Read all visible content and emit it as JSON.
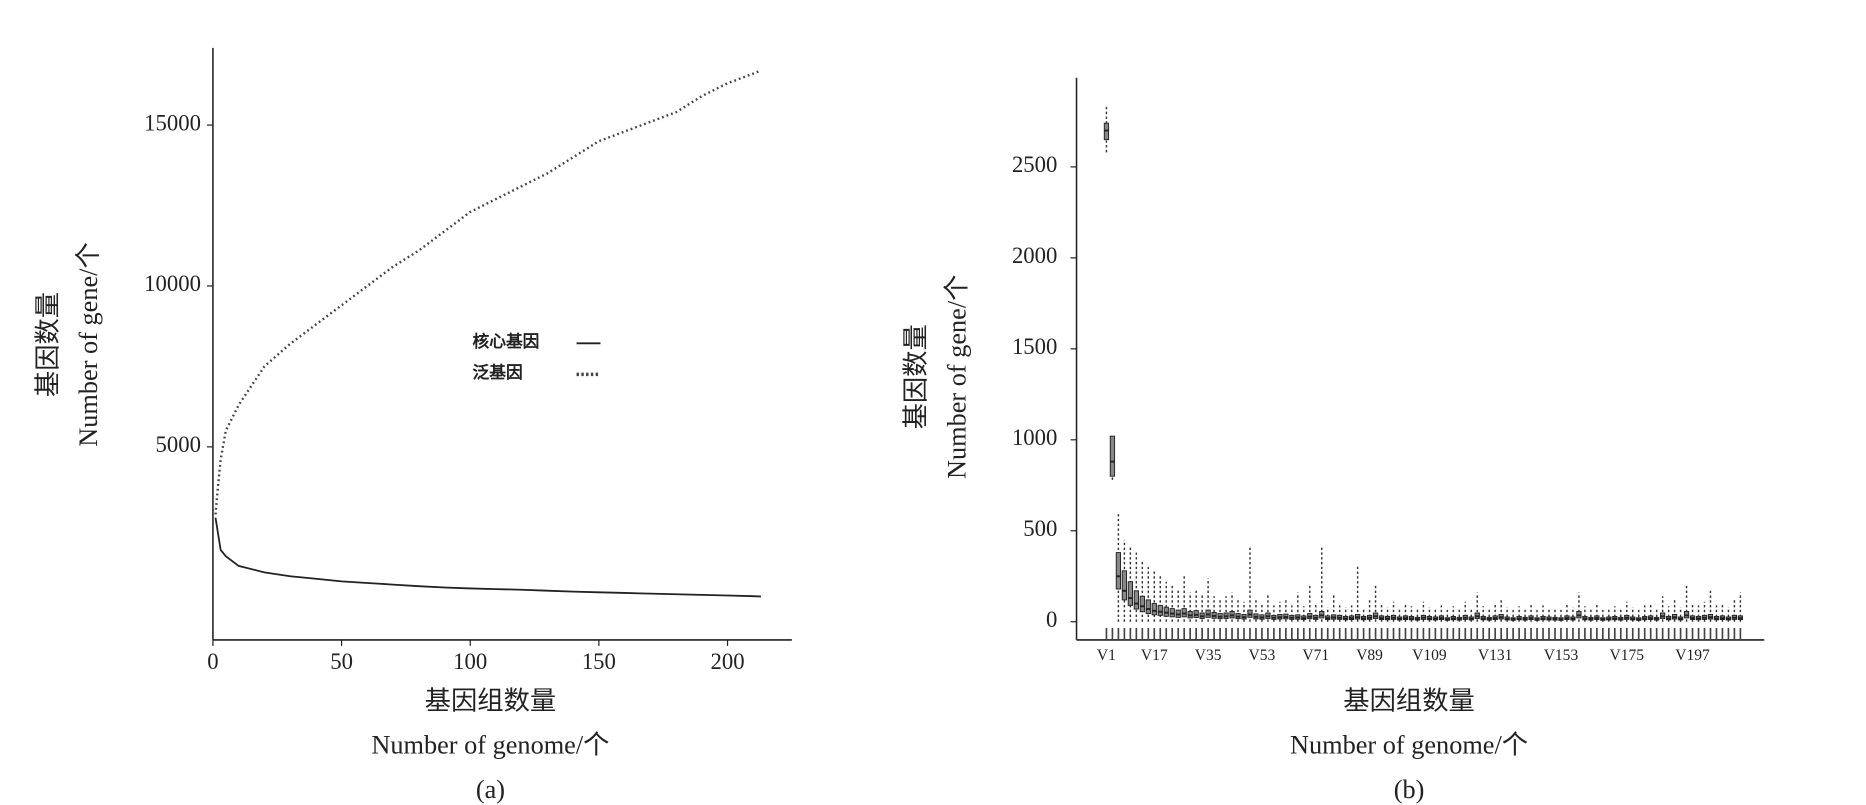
{
  "chart_data": [
    {
      "type": "line",
      "caption": "(a)",
      "xlabel": [
        "基因组数量",
        "Number of genome/个"
      ],
      "ylabel": [
        "基因数量",
        "Number of gene/个"
      ],
      "xlim": [
        0,
        225
      ],
      "xticks": [
        0,
        50,
        100,
        150,
        200
      ],
      "ylim": [
        -1000,
        17400
      ],
      "yticks": [
        5000,
        10000,
        15000
      ],
      "x": [
        1,
        2,
        3,
        5,
        10,
        20,
        30,
        40,
        50,
        60,
        70,
        80,
        90,
        100,
        110,
        120,
        130,
        140,
        150,
        160,
        170,
        180,
        190,
        200,
        210,
        213
      ],
      "series": [
        {
          "name": "核心基因",
          "color": "#222222",
          "style": "solid",
          "values": [
            2800,
            2300,
            1800,
            1600,
            1300,
            1100,
            980,
            900,
            820,
            770,
            720,
            670,
            630,
            600,
            580,
            560,
            530,
            500,
            480,
            460,
            440,
            420,
            400,
            380,
            360,
            350
          ]
        },
        {
          "name": "泛基因",
          "color": "#444444",
          "style": "dotted",
          "values": [
            2900,
            3800,
            4600,
            5500,
            6300,
            7500,
            8200,
            8800,
            9400,
            10000,
            10600,
            11100,
            11700,
            12300,
            12700,
            13100,
            13500,
            14000,
            14500,
            14800,
            15100,
            15400,
            15900,
            16300,
            16600,
            16700
          ]
        }
      ]
    },
    {
      "type": "box",
      "caption": "(b)",
      "xlabel": [
        "基因组数量",
        "Number of genome/个"
      ],
      "ylabel": [
        "基因数量",
        "Number of gene/个"
      ],
      "ylim": [
        -100,
        2990
      ],
      "yticks": [
        0,
        500,
        1000,
        1500,
        2000,
        2500
      ],
      "color": "#222222",
      "categories": [
        "V1",
        null,
        null,
        null,
        null,
        null,
        null,
        null,
        "V17",
        null,
        null,
        null,
        null,
        null,
        null,
        null,
        null,
        "V35",
        null,
        null,
        null,
        null,
        null,
        null,
        null,
        null,
        "V53",
        null,
        null,
        null,
        null,
        null,
        null,
        null,
        null,
        "V71",
        null,
        null,
        null,
        null,
        null,
        null,
        null,
        null,
        "V89",
        null,
        null,
        null,
        null,
        null,
        null,
        null,
        null,
        null,
        "V109",
        null,
        null,
        null,
        null,
        null,
        null,
        null,
        null,
        null,
        null,
        "V131",
        null,
        null,
        null,
        null,
        null,
        null,
        null,
        null,
        null,
        null,
        "V153",
        null,
        null,
        null,
        null,
        null,
        null,
        null,
        null,
        null,
        null,
        "V175",
        null,
        null,
        null,
        null,
        null,
        null,
        null,
        null,
        null,
        null,
        "V197",
        null,
        null,
        null,
        null,
        null,
        null,
        null,
        null
      ],
      "low": [
        2580,
        780,
        0,
        0,
        0,
        0,
        0,
        0,
        0,
        0,
        0,
        0,
        0,
        0,
        0,
        0,
        0,
        0,
        0,
        0,
        0,
        0,
        0,
        0,
        0,
        0,
        0,
        0,
        0,
        0,
        0,
        0,
        0,
        0,
        0,
        0,
        0,
        0,
        0,
        0,
        0,
        0,
        0,
        0,
        0,
        0,
        0,
        0,
        0,
        0,
        0,
        0,
        0,
        0,
        0,
        0,
        0,
        0,
        0,
        0,
        0,
        0,
        0,
        0,
        0,
        0,
        0,
        0,
        0,
        0,
        0,
        0,
        0,
        0,
        0,
        0,
        0,
        0,
        0,
        0,
        0,
        0,
        0,
        0,
        0,
        0,
        0,
        0,
        0,
        0,
        0,
        0,
        0,
        0,
        0,
        0,
        0,
        0,
        0,
        0,
        0,
        0,
        0,
        0,
        0,
        0,
        0
      ],
      "q1": [
        2650,
        800,
        180,
        120,
        90,
        70,
        55,
        45,
        38,
        35,
        30,
        27,
        24,
        27,
        21,
        23,
        18,
        24,
        19,
        17,
        18,
        21,
        17,
        15,
        24,
        16,
        14,
        18,
        13,
        15,
        16,
        13,
        14,
        12,
        17,
        13,
        21,
        12,
        14,
        13,
        11,
        12,
        15,
        11,
        13,
        18,
        12,
        11,
        13,
        10,
        12,
        11,
        9,
        13,
        11,
        10,
        12,
        8,
        11,
        9,
        13,
        10,
        18,
        11,
        9,
        12,
        15,
        10,
        8,
        11,
        9,
        12,
        8,
        11,
        10,
        9,
        8,
        12,
        10,
        21,
        11,
        9,
        12,
        8,
        10,
        11,
        9,
        13,
        10,
        8,
        11,
        12,
        9,
        18,
        11,
        15,
        10,
        21,
        12,
        11,
        13,
        15,
        11,
        12,
        10,
        13,
        12
      ],
      "median": [
        2700,
        880,
        250,
        170,
        130,
        100,
        85,
        70,
        60,
        55,
        50,
        45,
        40,
        45,
        35,
        38,
        30,
        40,
        32,
        28,
        30,
        35,
        28,
        25,
        40,
        27,
        24,
        30,
        22,
        25,
        26,
        22,
        24,
        20,
        28,
        22,
        35,
        20,
        24,
        22,
        18,
        20,
        25,
        18,
        22,
        30,
        20,
        18,
        22,
        16,
        20,
        18,
        15,
        22,
        18,
        16,
        20,
        14,
        18,
        15,
        22,
        16,
        30,
        18,
        15,
        20,
        25,
        16,
        14,
        18,
        15,
        20,
        14,
        18,
        16,
        15,
        14,
        20,
        16,
        35,
        18,
        15,
        20,
        14,
        16,
        18,
        15,
        22,
        16,
        14,
        18,
        20,
        15,
        30,
        18,
        25,
        16,
        35,
        20,
        18,
        22,
        25,
        18,
        20,
        16,
        22,
        20
      ],
      "q3": [
        2740,
        1020,
        380,
        280,
        220,
        170,
        140,
        120,
        100,
        90,
        80,
        72,
        64,
        72,
        56,
        61,
        48,
        64,
        51,
        45,
        48,
        56,
        45,
        40,
        64,
        43,
        38,
        48,
        35,
        40,
        42,
        35,
        38,
        32,
        45,
        35,
        56,
        32,
        38,
        35,
        29,
        32,
        40,
        29,
        35,
        48,
        32,
        29,
        35,
        26,
        32,
        29,
        24,
        35,
        29,
        26,
        32,
        22,
        29,
        24,
        35,
        26,
        48,
        29,
        24,
        32,
        40,
        26,
        22,
        29,
        24,
        32,
        22,
        29,
        26,
        24,
        22,
        32,
        26,
        56,
        29,
        24,
        32,
        22,
        26,
        29,
        24,
        35,
        26,
        22,
        29,
        32,
        24,
        48,
        29,
        40,
        26,
        56,
        32,
        29,
        35,
        40,
        29,
        32,
        26,
        35,
        32
      ],
      "high": [
        2840,
        1020,
        600,
        450,
        420,
        380,
        330,
        300,
        280,
        250,
        220,
        200,
        180,
        260,
        160,
        170,
        150,
        240,
        140,
        130,
        140,
        160,
        120,
        110,
        420,
        130,
        100,
        150,
        90,
        110,
        120,
        90,
        160,
        85,
        200,
        95,
        420,
        80,
        150,
        90,
        80,
        90,
        310,
        75,
        120,
        200,
        100,
        80,
        110,
        70,
        100,
        85,
        70,
        110,
        80,
        75,
        90,
        65,
        85,
        70,
        110,
        75,
        160,
        85,
        70,
        100,
        130,
        80,
        65,
        85,
        70,
        95,
        65,
        90,
        75,
        70,
        65,
        95,
        80,
        160,
        85,
        70,
        100,
        65,
        75,
        85,
        70,
        110,
        80,
        65,
        90,
        100,
        70,
        140,
        85,
        120,
        80,
        200,
        100,
        90,
        110,
        170,
        90,
        100,
        80,
        120,
        160
      ]
    }
  ]
}
